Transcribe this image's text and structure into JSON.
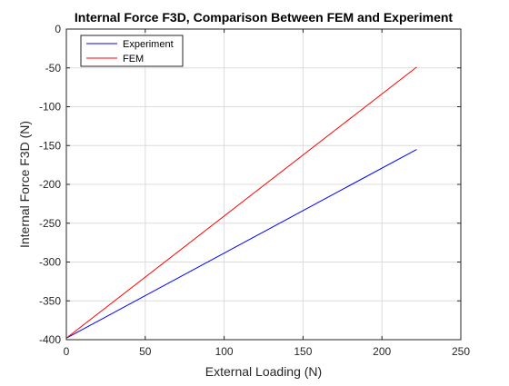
{
  "chart_data": {
    "type": "line",
    "title": "Internal Force F3D, Comparison Between FEM and Experiment",
    "xlabel": "External Loading (N)",
    "ylabel": "Internal Force F3D (N)",
    "xlim": [
      0,
      250
    ],
    "ylim": [
      -400,
      0
    ],
    "xticks": [
      0,
      50,
      100,
      150,
      200,
      250
    ],
    "yticks": [
      -400,
      -350,
      -300,
      -250,
      -200,
      -150,
      -100,
      -50,
      0
    ],
    "grid": true,
    "legend_position": "top-left",
    "series": [
      {
        "name": "Experiment",
        "color": "#0000ff",
        "x": [
          0,
          222
        ],
        "y": [
          -398,
          -155
        ]
      },
      {
        "name": "FEM",
        "color": "#ff0000",
        "x": [
          0,
          222
        ],
        "y": [
          -398,
          -49
        ]
      }
    ]
  }
}
